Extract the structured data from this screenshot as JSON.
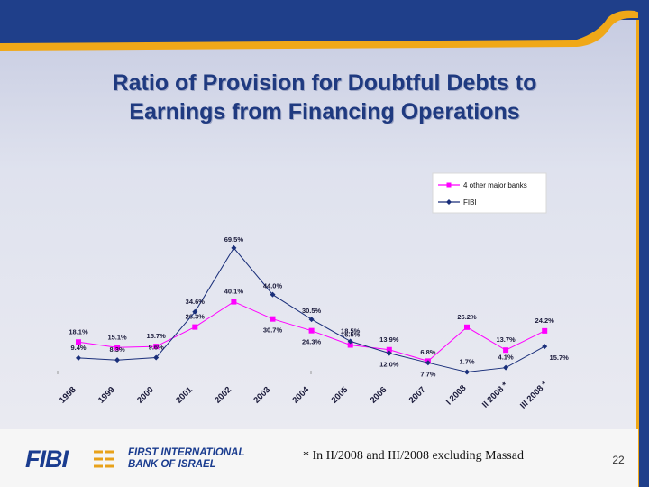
{
  "slide": {
    "title_line1": "Ratio of Provision for Doubtful Debts to",
    "title_line2": "Earnings from Financing Operations",
    "footnote": "* In II/2008 and III/2008 excluding Massad",
    "page_number": "22",
    "colors": {
      "frame": "#1f3f8a",
      "accent": "#f0a818",
      "title": "#1f3a80"
    }
  },
  "logo": {
    "short": "FIBI",
    "line1": "FIRST INTERNATIONAL",
    "line2": "BANK OF ISRAEL"
  },
  "chart_data": {
    "type": "line",
    "title": "",
    "xlabel": "",
    "ylabel": "",
    "ylim": [
      0,
      75
    ],
    "grid": false,
    "legend_position": "top-right",
    "categories": [
      "1998",
      "1999",
      "2000",
      "2001",
      "2002",
      "2003",
      "2004",
      "2005",
      "2006",
      "2007",
      "I 2008",
      "II 2008 *",
      "III 2008 *"
    ],
    "series": [
      {
        "name": "4 other major banks",
        "color": "#ff00ff",
        "marker": "square",
        "values": [
          18.1,
          15.1,
          15.7,
          26.3,
          40.1,
          30.7,
          24.3,
          16.5,
          13.9,
          7.7,
          26.2,
          13.7,
          24.2
        ],
        "labels": [
          "18.1%",
          "15.1%",
          "15.7%",
          "26.3%",
          "40.1%",
          "30.7%",
          "24.3%",
          "16.5%",
          "13.9%",
          "7.7%",
          "26.2%",
          "13.7%",
          "24.2%"
        ]
      },
      {
        "name": "FIBI",
        "color": "#1a2f7a",
        "marker": "diamond",
        "values": [
          9.4,
          8.3,
          9.6,
          34.6,
          69.5,
          44.0,
          30.5,
          18.5,
          12.0,
          6.8,
          1.7,
          4.1,
          15.7
        ],
        "labels": [
          "9.4%",
          "8.3%",
          "9.6%",
          "34.6%",
          "69.5%",
          "44.0%",
          "30.5%",
          "18.5%",
          "12.0%",
          "6.8%",
          "1.7%",
          "4.1%",
          "15.7%"
        ]
      }
    ]
  }
}
